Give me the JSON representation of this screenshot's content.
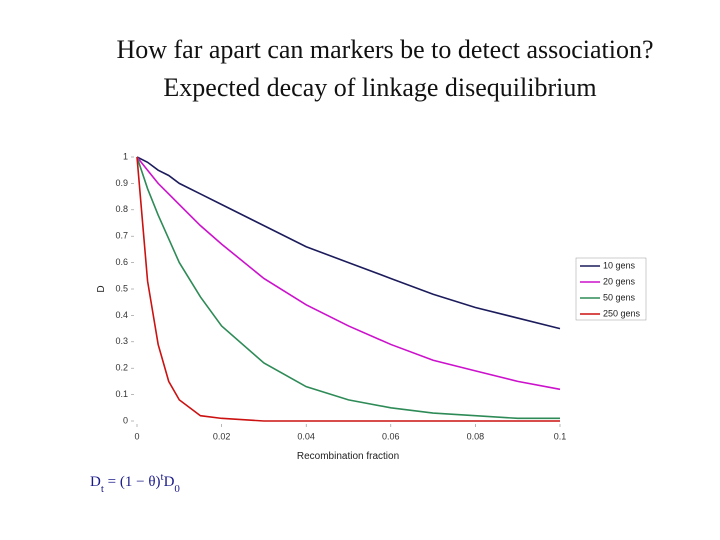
{
  "chart_data": {
    "type": "line",
    "title": [
      "How far apart can markers be to detect association?",
      "Expected decay of linkage disequilibrium"
    ],
    "x_label": "Recombination fraction",
    "y_label": "D",
    "x": [
      0,
      0.0025,
      0.005,
      0.0075,
      0.01,
      0.015,
      0.02,
      0.03,
      0.04,
      0.05,
      0.06,
      0.07,
      0.08,
      0.09,
      0.1
    ],
    "series": [
      {
        "name": "10 gens",
        "color": "#1c1c5c",
        "values": [
          1,
          0.98,
          0.95,
          0.93,
          0.9,
          0.86,
          0.82,
          0.74,
          0.66,
          0.6,
          0.54,
          0.48,
          0.43,
          0.39,
          0.35
        ]
      },
      {
        "name": "20 gens",
        "color": "#cc11cc",
        "values": [
          1,
          0.95,
          0.9,
          0.86,
          0.82,
          0.74,
          0.67,
          0.54,
          0.44,
          0.36,
          0.29,
          0.23,
          0.19,
          0.15,
          0.12
        ]
      },
      {
        "name": "50 gens",
        "color": "#2e8b57",
        "values": [
          1,
          0.88,
          0.78,
          0.69,
          0.6,
          0.47,
          0.36,
          0.22,
          0.13,
          0.08,
          0.05,
          0.03,
          0.02,
          0.01,
          0.01
        ]
      },
      {
        "name": "250 gens",
        "color": "#cc1111",
        "values": [
          1,
          0.53,
          0.29,
          0.15,
          0.08,
          0.02,
          0.01,
          0,
          0,
          0,
          0,
          0,
          0,
          0,
          0
        ]
      }
    ],
    "xlim": [
      0,
      0.1
    ],
    "ylim": [
      0,
      1
    ],
    "xticks": [
      0,
      0.02,
      0.04,
      0.06,
      0.08,
      0.1
    ],
    "yticks": [
      0,
      0.1,
      0.2,
      0.3,
      0.4,
      0.5,
      0.6,
      0.7,
      0.8,
      0.9,
      1
    ],
    "legend": "right",
    "formula": [
      "D",
      "t",
      " = (1 − θ)",
      "t",
      "D",
      "0"
    ]
  }
}
